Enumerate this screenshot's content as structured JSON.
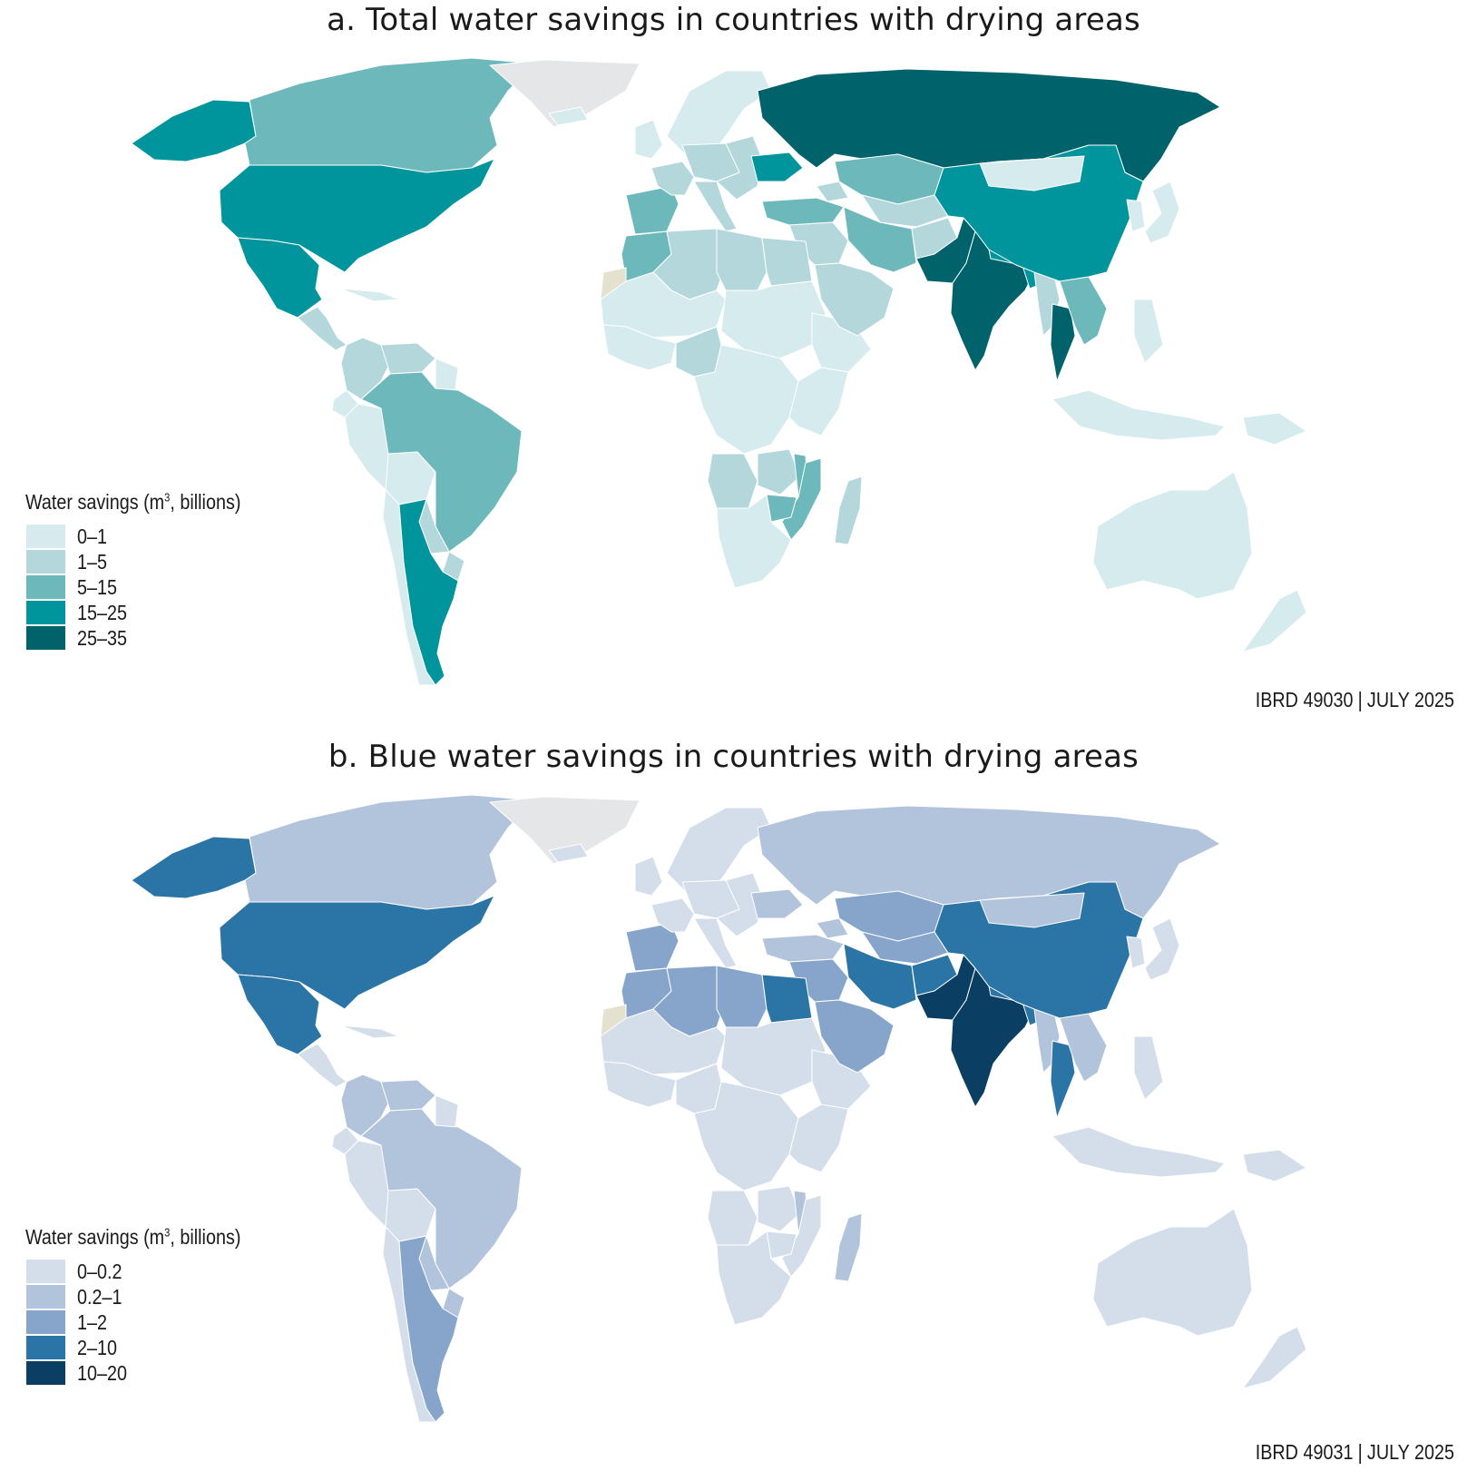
{
  "panels": {
    "a": {
      "title": "a. Total water savings in countries with drying areas",
      "legend": {
        "title_prefix": "Water savings (m",
        "title_sup": "3",
        "title_suffix": ", billions)",
        "classes": [
          {
            "label": "0–1",
            "color": "#d6ebee"
          },
          {
            "label": "1–5",
            "color": "#b3d7db"
          },
          {
            "label": "5–15",
            "color": "#6db8bb"
          },
          {
            "label": "15–25",
            "color": "#00959c"
          },
          {
            "label": "25–35",
            "color": "#00636b"
          }
        ]
      },
      "credit_id": "IBRD 49030",
      "credit_date": "JULY 2025",
      "countries": {
        "alaska": 3,
        "canada": 2,
        "usa": 3,
        "mexico": 3,
        "central_america": 1,
        "cuba": 0,
        "colombia": 1,
        "venezuela": 1,
        "guianas": 0,
        "ecuador": 0,
        "peru": 0,
        "bolivia": 0,
        "brazil": 2,
        "paraguay": 1,
        "uruguay": 1,
        "chile": 0,
        "argentina": 3,
        "greenland": -1,
        "iceland": 0,
        "scandinavia": 0,
        "uk_ireland": 0,
        "iberia": 2,
        "france": 1,
        "central_europe": 1,
        "italy": 1,
        "eastern_europe": 1,
        "ukraine": 3,
        "turkey": 2,
        "russia": 4,
        "kazakhstan": 2,
        "central_asia": 1,
        "caucasus": 1,
        "iran": 2,
        "afghanistan": 1,
        "pakistan": 4,
        "india": 4,
        "nepal": 3,
        "bangladesh": 3,
        "myanmar": 1,
        "thailand": 4,
        "indochina": 2,
        "china": 3,
        "mongolia": 0,
        "korea": 0,
        "japan": 0,
        "philippines": 0,
        "indonesia": 0,
        "png": 0,
        "morocco": 2,
        "western_sahara": -2,
        "algeria": 1,
        "libya": 1,
        "egypt": 1,
        "mauritania_mali_niger": 0,
        "chad_sudan": 0,
        "west_africa": 0,
        "nigeria": 1,
        "central_africa": 0,
        "ethiopia": 0,
        "east_africa": 0,
        "angola": 1,
        "zambia": 1,
        "malawi": 2,
        "mozambique": 2,
        "zimbabwe": 2,
        "southern_africa": 0,
        "madagascar": 1,
        "arabia": 1,
        "middle_east": 1,
        "australia": 0,
        "new_zealand": 0
      }
    },
    "b": {
      "title": "b. Blue water savings in countries with drying areas",
      "legend": {
        "title_prefix": "Water savings (m",
        "title_sup": "3",
        "title_suffix": ", billions)",
        "classes": [
          {
            "label": "0–0.2",
            "color": "#d4deeb"
          },
          {
            "label": "0.2–1",
            "color": "#b1c4db"
          },
          {
            "label": "1–2",
            "color": "#87a5cb"
          },
          {
            "label": "2–10",
            "color": "#2b74a6"
          },
          {
            "label": "10–20",
            "color": "#0a3e62"
          }
        ]
      },
      "credit_id": "IBRD 49031",
      "credit_date": "JULY 2025",
      "countries": {
        "alaska": 3,
        "canada": 1,
        "usa": 3,
        "mexico": 3,
        "central_america": 0,
        "cuba": 0,
        "colombia": 1,
        "venezuela": 1,
        "guianas": 0,
        "ecuador": 0,
        "peru": 0,
        "bolivia": 0,
        "brazil": 1,
        "paraguay": 1,
        "uruguay": 1,
        "chile": 0,
        "argentina": 2,
        "greenland": -1,
        "iceland": 0,
        "scandinavia": 0,
        "uk_ireland": 0,
        "iberia": 2,
        "france": 0,
        "central_europe": 0,
        "italy": 0,
        "eastern_europe": 0,
        "ukraine": 1,
        "turkey": 1,
        "russia": 1,
        "kazakhstan": 2,
        "central_asia": 2,
        "caucasus": 1,
        "iran": 3,
        "afghanistan": 3,
        "pakistan": 4,
        "india": 4,
        "nepal": 3,
        "bangladesh": 3,
        "myanmar": 1,
        "thailand": 3,
        "indochina": 1,
        "china": 3,
        "mongolia": 1,
        "korea": 0,
        "japan": 0,
        "philippines": 0,
        "indonesia": 0,
        "png": 0,
        "morocco": 2,
        "western_sahara": -2,
        "algeria": 2,
        "libya": 2,
        "egypt": 3,
        "mauritania_mali_niger": 0,
        "chad_sudan": 0,
        "west_africa": 0,
        "nigeria": 0,
        "central_africa": 0,
        "ethiopia": 0,
        "east_africa": 0,
        "angola": 0,
        "zambia": 0,
        "malawi": 1,
        "mozambique": 0,
        "zimbabwe": 0,
        "southern_africa": 0,
        "madagascar": 1,
        "arabia": 2,
        "middle_east": 2,
        "australia": 0,
        "new_zealand": 0
      }
    }
  },
  "no_data_color": "#e5e6e8",
  "disputed_color": "#e4e2cf"
}
